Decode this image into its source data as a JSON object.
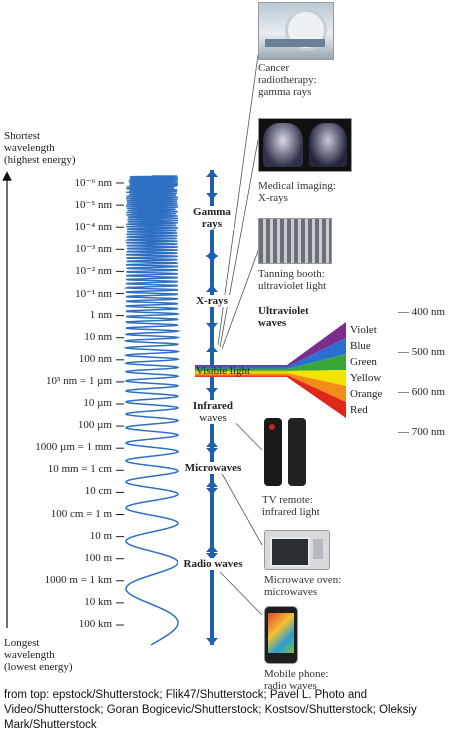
{
  "axis": {
    "top_label": [
      "Shortest",
      "wavelength",
      "(highest energy)"
    ],
    "bottom_label": [
      "Longest",
      "wavelength",
      "(lowest energy)"
    ],
    "ticks": [
      "10⁻⁶ nm",
      "10⁻⁵ nm",
      "10⁻⁴ nm",
      "10⁻³ nm",
      "10⁻² nm",
      "10⁻¹ nm",
      "1 nm",
      "10 nm",
      "100 nm",
      "10³ nm = 1 µm",
      "10 µm",
      "100 µm",
      "1000 µm = 1 mm",
      "10 mm = 1 cm",
      "10 cm",
      "100 cm = 1 m",
      "10 m",
      "100 m",
      "1000 m = 1 km",
      "10 km",
      "100 km"
    ]
  },
  "bands": {
    "gamma": [
      "Gamma",
      "rays"
    ],
    "xrays": "X-rays",
    "uv": [
      "Ultraviolet",
      "waves"
    ],
    "visible": "Visible light",
    "infrared": [
      "Infrared",
      "waves"
    ],
    "microwaves": "Microwaves",
    "radio": "Radio waves"
  },
  "spectrum": {
    "colors": [
      "Violet",
      "Blue",
      "Green",
      "Yellow",
      "Orange",
      "Red"
    ],
    "color_hex": [
      "#7b2d8e",
      "#2b6fd0",
      "#3aa63a",
      "#f2e300",
      "#f28c1a",
      "#e0261c"
    ],
    "nm_labels": [
      "— 400 nm",
      "— 500 nm",
      "— 600 nm",
      "— 700 nm"
    ]
  },
  "photos": {
    "gamma": [
      "Cancer",
      "radiotherapy:",
      "gamma rays"
    ],
    "xray": [
      "Medical imaging:",
      "X-rays"
    ],
    "uv": [
      "Tanning booth:",
      "ultraviolet light"
    ],
    "ir": [
      "TV remote:",
      "infrared light"
    ],
    "microwave": [
      "Microwave oven:",
      "microwaves"
    ],
    "radio": [
      "Mobile phone:",
      "radio waves"
    ]
  },
  "credit": "from top: epstock/Shutterstock; Flik47/Shutterstock; Pavel L. Photo and Video/Shutterstock; Goran Bogicevic/Shutterstock; Kostsov/Shutterstock; Oleksiy Mark/Shutterstock",
  "colors": {
    "arrow": "#1f5fb3",
    "wave": "#2d6fc2"
  }
}
